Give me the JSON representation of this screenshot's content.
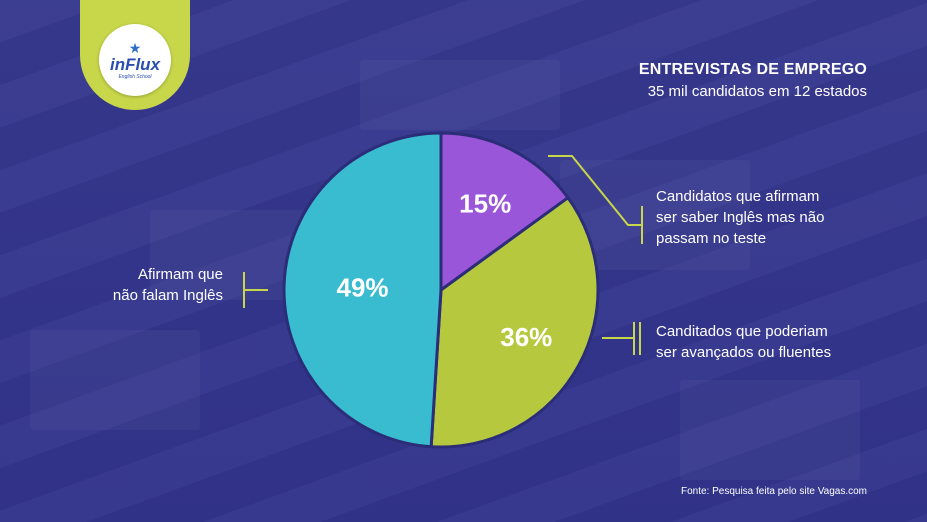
{
  "logo": {
    "brand": "inFlux",
    "tagline": "English School"
  },
  "header": {
    "title": "ENTREVISTAS DE EMPREGO",
    "subtitle": "35 mil candidatos em 12 estados"
  },
  "chart_data": {
    "type": "pie",
    "title": "ENTREVISTAS DE EMPREGO",
    "subtitle": "35 mil candidatos em 12 estados",
    "slices": [
      {
        "label": "Candidatos que afirmam\nser saber Inglês mas não\npassam no teste",
        "value": 15,
        "value_label": "15%",
        "color": "#9a56d8"
      },
      {
        "label": "Canditados que poderiam\nser avançados ou fluentes",
        "value": 36,
        "value_label": "36%",
        "color": "#b6c93e"
      },
      {
        "label": "Afirmam que\nnão falam Inglês",
        "value": 49,
        "value_label": "49%",
        "color": "#39bccf"
      }
    ],
    "start": "top, clockwise",
    "connector_color": "#c8d64a"
  },
  "footer": {
    "source": "Fonte: Pesquisa feita pelo site Vagas.com"
  }
}
